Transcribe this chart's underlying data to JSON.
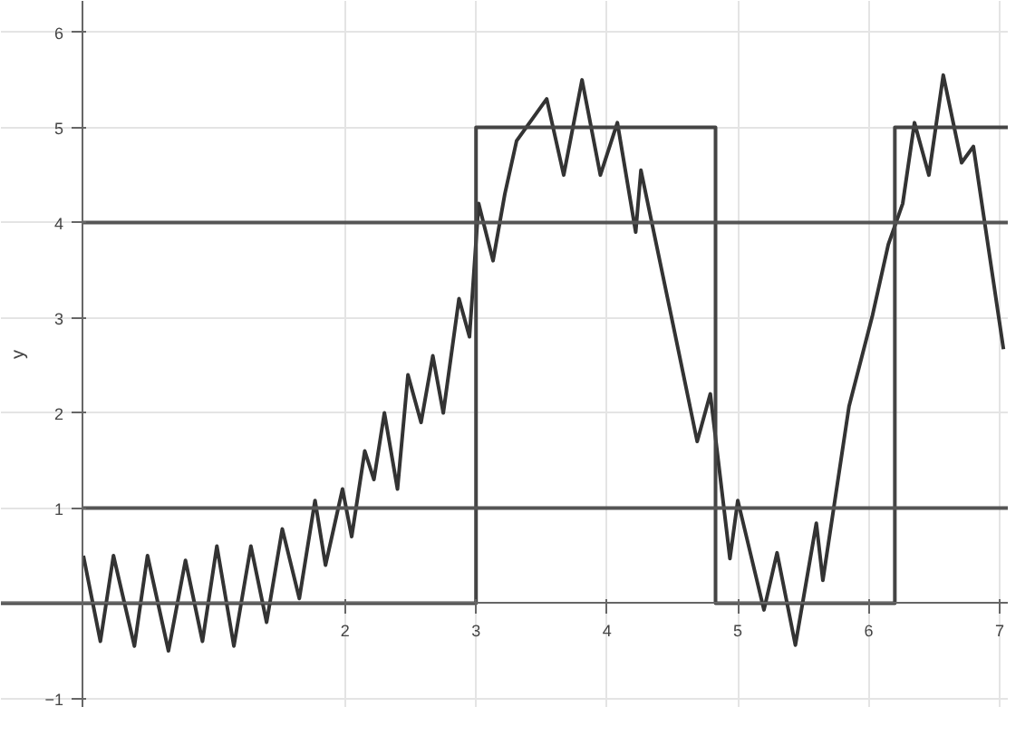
{
  "chart_data": {
    "type": "line",
    "ylabel": "y",
    "xlim": [
      -0.63,
      7.07
    ],
    "ylim": [
      -1.1,
      6.33
    ],
    "xticks": [
      2,
      3,
      4,
      5,
      6,
      7
    ],
    "yticks": [
      -1,
      1,
      2,
      3,
      4,
      5,
      6
    ],
    "grid": true,
    "line_style": "solid",
    "marker": "none",
    "series": [
      {
        "color": "#333333",
        "x": [
          0.0,
          0.13,
          0.23,
          0.39,
          0.49,
          0.65,
          0.78,
          0.91,
          1.02,
          1.15,
          1.28,
          1.4,
          1.52,
          1.65,
          1.77,
          1.85,
          1.98,
          2.05,
          2.15,
          2.22,
          2.3,
          2.4,
          2.48,
          2.58,
          2.67,
          2.75,
          2.87,
          2.95,
          3.02,
          3.13,
          3.22,
          3.31,
          3.54,
          3.67,
          3.81,
          3.95,
          4.08,
          4.22,
          4.26,
          4.49,
          4.69,
          4.79,
          4.94,
          5.0,
          5.2,
          5.3,
          5.44,
          5.6,
          5.65,
          5.85,
          6.03,
          6.15,
          6.26,
          6.35,
          6.46,
          6.57,
          6.71,
          6.8,
          7.03
        ],
        "values": [
          0.5,
          -0.4,
          0.5,
          -0.45,
          0.5,
          -0.5,
          0.45,
          -0.4,
          0.6,
          -0.45,
          0.6,
          -0.2,
          0.78,
          0.05,
          1.08,
          0.4,
          1.2,
          0.7,
          1.6,
          1.3,
          2.0,
          1.2,
          2.4,
          1.9,
          2.6,
          2.0,
          3.2,
          2.8,
          4.2,
          3.6,
          4.3,
          4.86,
          5.3,
          4.5,
          5.5,
          4.5,
          5.05,
          3.9,
          4.55,
          3.03,
          1.7,
          2.2,
          0.47,
          1.08,
          -0.07,
          0.53,
          -0.44,
          0.84,
          0.24,
          2.07,
          3.03,
          3.77,
          4.2,
          5.05,
          4.5,
          5.55,
          4.63,
          4.8,
          2.67
        ]
      },
      {
        "color": "#444444",
        "x": [
          -0.63,
          3.0,
          3.0,
          4.83,
          4.83,
          6.2,
          6.2,
          7.07
        ],
        "values": [
          0,
          0,
          5,
          5,
          0,
          0,
          5,
          5
        ]
      },
      {
        "color": "#555555",
        "x": [
          0.0,
          7.07
        ],
        "values": [
          1,
          1
        ]
      },
      {
        "color": "#555555",
        "x": [
          0.0,
          7.07
        ],
        "values": [
          4,
          4
        ]
      }
    ]
  }
}
